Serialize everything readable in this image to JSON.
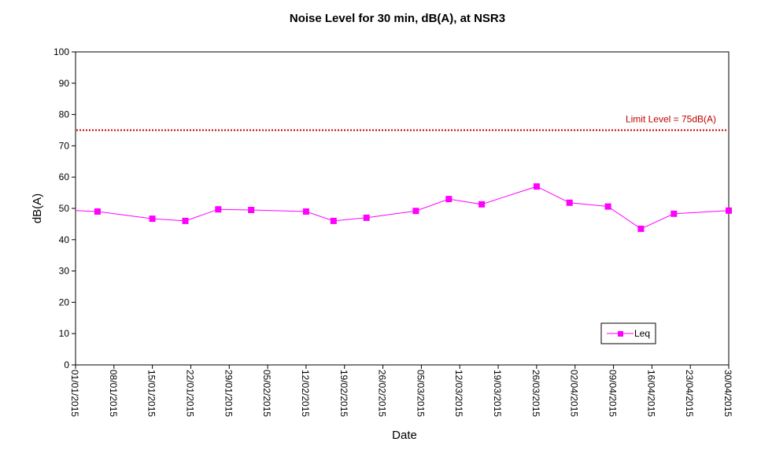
{
  "chart_data": {
    "type": "line",
    "title": "Noise Level for 30 min, dB(A), at NSR3",
    "xlabel": "Date",
    "ylabel": "dB(A)",
    "ylim": [
      0,
      100
    ],
    "y_ticks": [
      0,
      10,
      20,
      30,
      40,
      50,
      60,
      70,
      80,
      90,
      100
    ],
    "xlim": [
      "2015-01-01",
      "2015-04-30"
    ],
    "x_tick_labels": [
      "01/01/2015",
      "08/01/2015",
      "15/01/2015",
      "22/01/2015",
      "29/01/2015",
      "05/02/2015",
      "12/02/2015",
      "19/02/2015",
      "26/02/2015",
      "05/03/2015",
      "12/03/2015",
      "19/03/2015",
      "26/03/2015",
      "02/04/2015",
      "09/04/2015",
      "16/04/2015",
      "23/04/2015",
      "30/04/2015"
    ],
    "grid": false,
    "legend_position": "bottom-right",
    "limit_line": {
      "value": 75,
      "label": "Limit Level  = 75dB(A)",
      "color": "#c00000"
    },
    "series": [
      {
        "name": "Leq",
        "color": "#ff00ff",
        "x": [
          "2015-01-05",
          "2015-01-15",
          "2015-01-21",
          "2015-01-27",
          "2015-02-02",
          "2015-02-12",
          "2015-02-17",
          "2015-02-23",
          "2015-03-04",
          "2015-03-10",
          "2015-03-16",
          "2015-03-26",
          "2015-04-01",
          "2015-04-08",
          "2015-04-14",
          "2015-04-20",
          "2015-04-30"
        ],
        "values": [
          49.0,
          46.7,
          46.0,
          49.7,
          49.5,
          49.0,
          46.0,
          47.0,
          49.2,
          53.0,
          51.3,
          57.0,
          51.8,
          50.6,
          43.5,
          48.3,
          49.3
        ]
      }
    ]
  }
}
